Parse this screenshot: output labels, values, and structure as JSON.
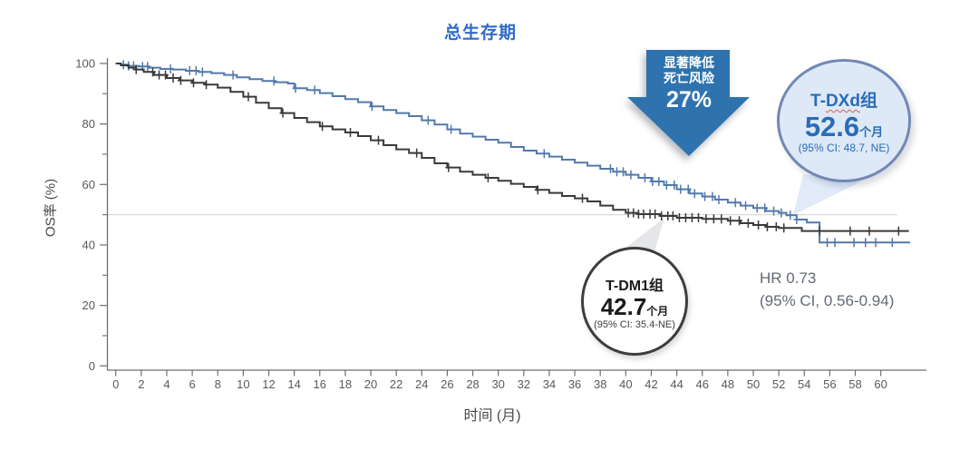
{
  "title": "总生存期",
  "colors": {
    "title_blue": "#2f6bc9",
    "arrow_blue": "#2e73ae",
    "curve_blue": "#5379ab",
    "curve_black": "#3a3a3a",
    "badge_blue_fill": "#dde9f6",
    "badge_blue_border": "#7288b5",
    "badge_blue_text": "#2a6cb8",
    "reference_line": "#d9d9d9",
    "axis": "#6f6f6f",
    "tick_text": "#595959",
    "gray_text": "#636a75"
  },
  "axis": {
    "x_ticks": [
      0,
      2,
      4,
      6,
      8,
      10,
      12,
      14,
      16,
      18,
      20,
      22,
      24,
      26,
      28,
      30,
      32,
      34,
      36,
      38,
      40,
      42,
      44,
      46,
      48,
      50,
      52,
      54,
      56,
      58,
      60
    ],
    "y_ticks_major": [
      0,
      20,
      40,
      60,
      80,
      100
    ],
    "y_ticks_minor": [
      10,
      30,
      50,
      70,
      90
    ],
    "x_label": "时间 (月)",
    "y_label": "OS率 (%)"
  },
  "chart_data": {
    "type": "line",
    "subtype": "kaplan-meier-step",
    "title": "总生存期",
    "xlabel": "时间 (月)",
    "ylabel": "OS率 (%)",
    "xlim": [
      0,
      62.5
    ],
    "ylim": [
      0,
      100
    ],
    "grid": false,
    "reference_line_y": 50,
    "series": [
      {
        "name": "T-DXd组",
        "color": "#5379ab",
        "median_months": 52.6,
        "median_ci": "95% CI: 48.7, NE",
        "points": [
          [
            0,
            100
          ],
          [
            0.4,
            99.6
          ],
          [
            1,
            99.2
          ],
          [
            1.8,
            99
          ],
          [
            2.6,
            98.6
          ],
          [
            3.5,
            98.2
          ],
          [
            4.5,
            98
          ],
          [
            5.5,
            97.6
          ],
          [
            6.5,
            97.2
          ],
          [
            7.5,
            96.8
          ],
          [
            8.5,
            96.2
          ],
          [
            9.5,
            95.4
          ],
          [
            10.5,
            94.8
          ],
          [
            11.5,
            94.2
          ],
          [
            12.5,
            93.8
          ],
          [
            13.5,
            93.4
          ],
          [
            14,
            91.8
          ],
          [
            15,
            91.2
          ],
          [
            16,
            90.2
          ],
          [
            17,
            89.2
          ],
          [
            18,
            88.2
          ],
          [
            19,
            87.2
          ],
          [
            20,
            85.8
          ],
          [
            21,
            84.6
          ],
          [
            22,
            83.6
          ],
          [
            23,
            82.6
          ],
          [
            24,
            81.2
          ],
          [
            25,
            79.8
          ],
          [
            26,
            78.2
          ],
          [
            27,
            76.8
          ],
          [
            28,
            75.8
          ],
          [
            29,
            74.8
          ],
          [
            30,
            73.8
          ],
          [
            31,
            72.4
          ],
          [
            32,
            71.2
          ],
          [
            33,
            70.2
          ],
          [
            34,
            69.2
          ],
          [
            35,
            68.2
          ],
          [
            36,
            67.2
          ],
          [
            37,
            66.2
          ],
          [
            38,
            65.2
          ],
          [
            39,
            64.2
          ],
          [
            40,
            63.2
          ],
          [
            41,
            62.2
          ],
          [
            42,
            61
          ],
          [
            43,
            59.8
          ],
          [
            44,
            58.4
          ],
          [
            45,
            57
          ],
          [
            46,
            56
          ],
          [
            47,
            55
          ],
          [
            48,
            54
          ],
          [
            49,
            53
          ],
          [
            50,
            52.2
          ],
          [
            51,
            51.2
          ],
          [
            52,
            50.6
          ],
          [
            52.6,
            49.8
          ],
          [
            53.4,
            48.4
          ],
          [
            54.2,
            47.4
          ],
          [
            55.2,
            40.8
          ],
          [
            62.3,
            40.8
          ]
        ],
        "censor_months": [
          0.6,
          1.0,
          1.4,
          2.1,
          2.5,
          4.3,
          5.8,
          6.3,
          6.8,
          9.2,
          12.4,
          14.1,
          15.6,
          20.1,
          24.5,
          26.3,
          33.6,
          38.8,
          39.3,
          39.8,
          40.4,
          41.5,
          42.1,
          42.6,
          43.2,
          43.8,
          44.3,
          44.9,
          45.4,
          46.2,
          46.8,
          47.3,
          48.6,
          49.4,
          50.3,
          50.9,
          51.6,
          52.2,
          52.9,
          53.4,
          55.8,
          56.4,
          57.9,
          58.8,
          59.6,
          60.9
        ]
      },
      {
        "name": "T-DM1组",
        "color": "#3a3a3a",
        "median_months": 42.7,
        "median_ci": "95% CI: 35.4-NE",
        "points": [
          [
            0,
            100
          ],
          [
            0.4,
            99.4
          ],
          [
            1,
            98.6
          ],
          [
            1.6,
            98
          ],
          [
            2.2,
            97.2
          ],
          [
            3,
            96.2
          ],
          [
            4,
            95.2
          ],
          [
            5,
            94.4
          ],
          [
            6,
            93.6
          ],
          [
            7,
            93
          ],
          [
            8,
            92
          ],
          [
            9,
            90.6
          ],
          [
            10,
            89
          ],
          [
            11,
            87
          ],
          [
            12,
            85.2
          ],
          [
            13,
            83.6
          ],
          [
            14,
            82
          ],
          [
            15,
            80.6
          ],
          [
            16,
            79.2
          ],
          [
            17,
            78.2
          ],
          [
            18,
            77.2
          ],
          [
            19,
            76
          ],
          [
            20,
            74.6
          ],
          [
            21,
            73
          ],
          [
            22,
            71.6
          ],
          [
            23,
            70.4
          ],
          [
            24,
            68.8
          ],
          [
            25,
            67
          ],
          [
            26,
            65.6
          ],
          [
            27,
            64.2
          ],
          [
            28,
            63.2
          ],
          [
            29,
            62.2
          ],
          [
            30,
            61.2
          ],
          [
            31,
            60.2
          ],
          [
            32,
            59.2
          ],
          [
            33,
            58.2
          ],
          [
            34,
            57.2
          ],
          [
            35,
            56.2
          ],
          [
            36,
            55.4
          ],
          [
            37,
            54.4
          ],
          [
            38,
            53
          ],
          [
            39,
            51.6
          ],
          [
            40,
            50.6
          ],
          [
            41,
            50.2
          ],
          [
            42.7,
            49.6
          ],
          [
            44,
            49
          ],
          [
            46,
            48.6
          ],
          [
            48,
            48
          ],
          [
            49,
            47.2
          ],
          [
            50,
            46.6
          ],
          [
            51,
            46
          ],
          [
            52,
            45.6
          ],
          [
            53.8,
            44.6
          ],
          [
            62.2,
            44.6
          ]
        ],
        "censor_months": [
          1.6,
          2.9,
          3.4,
          3.9,
          4.5,
          5.1,
          6.1,
          7.1,
          10.4,
          13.1,
          16.2,
          18.4,
          20.6,
          23.6,
          26.1,
          29.2,
          33.1,
          36.6,
          40.2,
          40.6,
          41.0,
          41.4,
          41.9,
          42.3,
          42.8,
          43.3,
          43.7,
          44.2,
          44.7,
          45.2,
          45.7,
          46.3,
          46.9,
          47.5,
          48.2,
          48.9,
          49.6,
          50.4,
          51.1,
          51.8,
          52.4,
          55.2,
          57.6,
          59.1,
          61.4
        ]
      }
    ]
  },
  "annotations": {
    "arrow": {
      "line1": "显著降低",
      "line2": "死亡风险",
      "value": "27%"
    },
    "tdxd_badge": {
      "label_prefix": "T-",
      "label_mid": "DXd",
      "label_suffix": "组",
      "value": "52.6",
      "unit": "个月",
      "ci": "(95% CI: 48.7, NE)"
    },
    "tdm1_badge": {
      "label": "T-DM1组",
      "value": "42.7",
      "unit": "个月",
      "ci": "(95% CI: 35.4-NE)"
    },
    "hr": {
      "line1": "HR 0.73",
      "line2": "(95% CI, 0.56-0.94)"
    }
  }
}
